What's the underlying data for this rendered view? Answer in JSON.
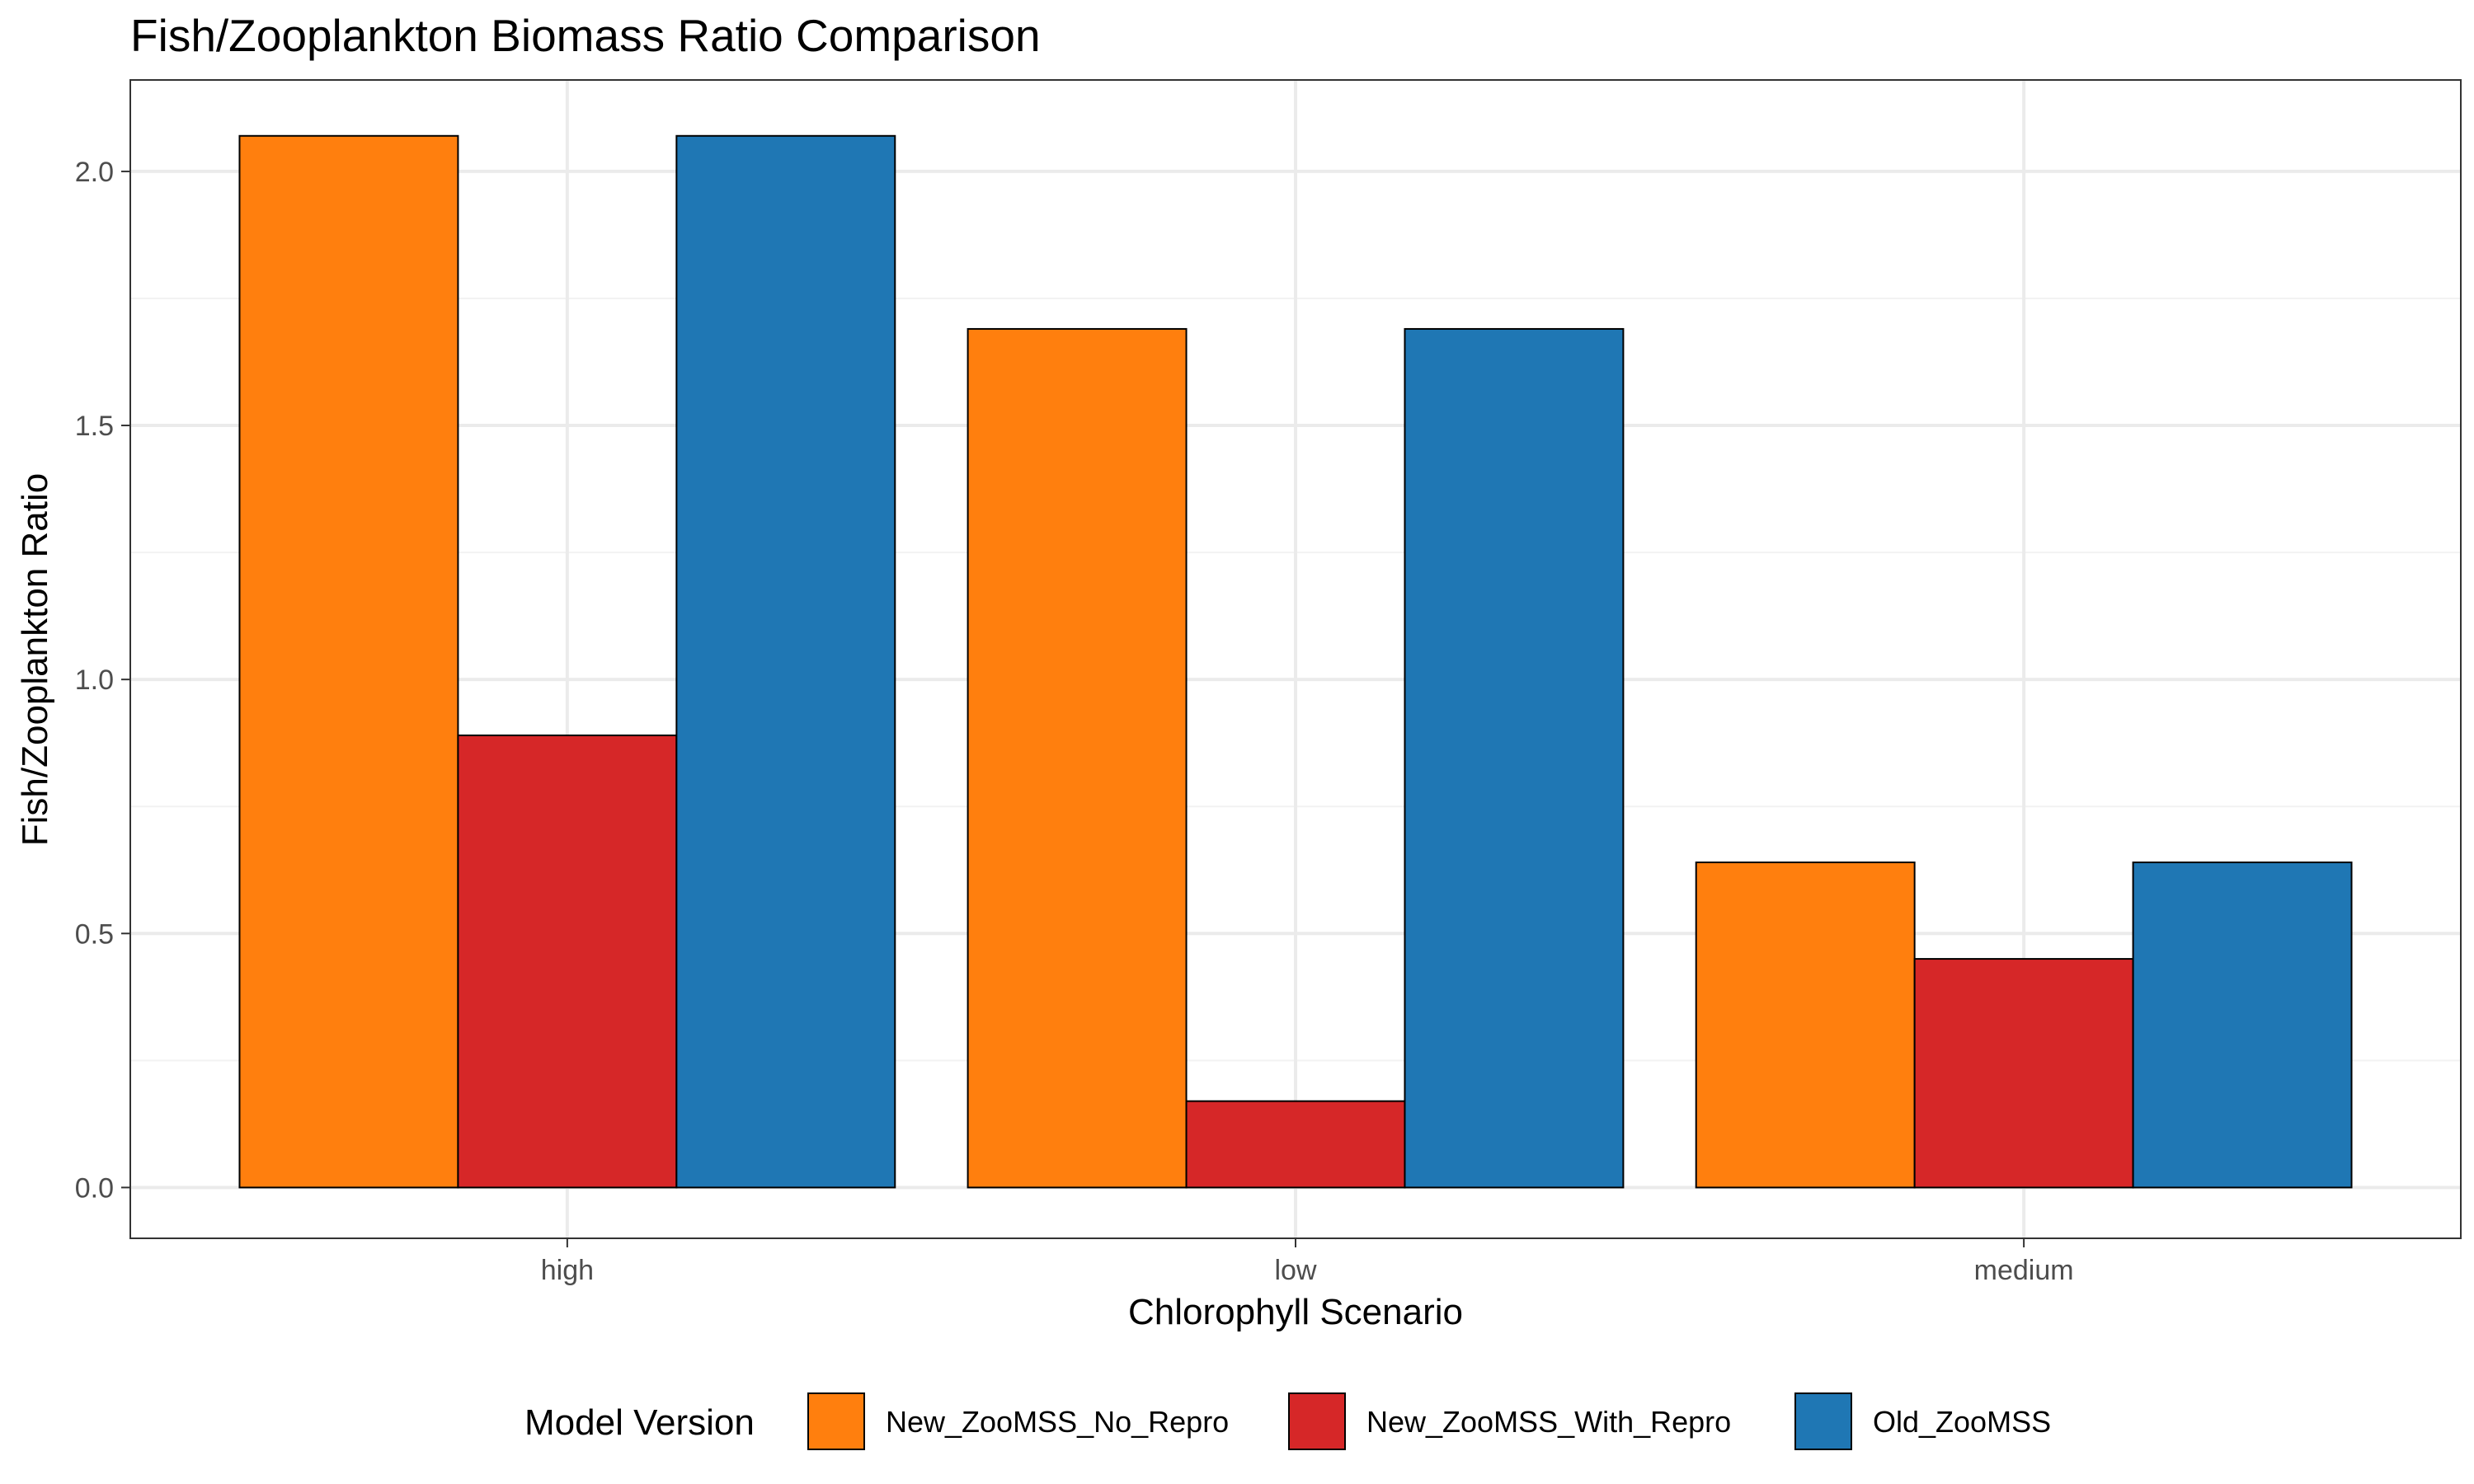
{
  "chart_data": {
    "type": "bar",
    "title": "Fish/Zooplankton Biomass Ratio Comparison",
    "xlabel": "Chlorophyll Scenario",
    "ylabel": "Fish/Zooplankton Ratio",
    "categories": [
      "high",
      "low",
      "medium"
    ],
    "ylim": [
      -0.1,
      2.18
    ],
    "yticks": [
      0.0,
      0.5,
      1.0,
      1.5,
      2.0
    ],
    "ytick_labels": [
      "0.0",
      "0.5",
      "1.0",
      "1.5",
      "2.0"
    ],
    "grid": true,
    "legend": {
      "title": "Model Version",
      "position": "bottom"
    },
    "series": [
      {
        "name": "New_ZooMSS_No_Repro",
        "color": "#FF7F0E",
        "values": [
          2.07,
          1.69,
          0.64
        ]
      },
      {
        "name": "New_ZooMSS_With_Repro",
        "color": "#D62728",
        "values": [
          0.89,
          0.17,
          0.45
        ]
      },
      {
        "name": "Old_ZooMSS",
        "color": "#1F77B4",
        "values": [
          2.07,
          1.69,
          0.64
        ]
      }
    ]
  }
}
